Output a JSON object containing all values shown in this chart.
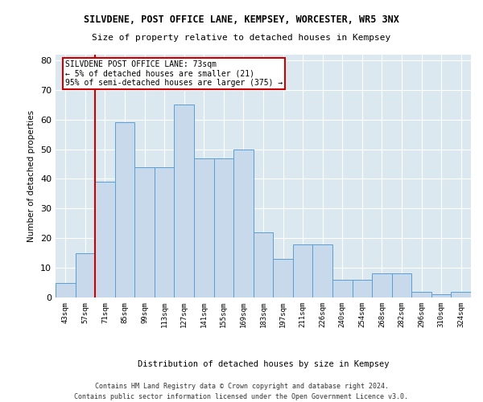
{
  "title1": "SILVDENE, POST OFFICE LANE, KEMPSEY, WORCESTER, WR5 3NX",
  "title2": "Size of property relative to detached houses in Kempsey",
  "xlabel": "Distribution of detached houses by size in Kempsey",
  "ylabel": "Number of detached properties",
  "categories": [
    "43sqm",
    "57sqm",
    "71sqm",
    "85sqm",
    "99sqm",
    "113sqm",
    "127sqm",
    "141sqm",
    "155sqm",
    "169sqm",
    "183sqm",
    "197sqm",
    "211sqm",
    "226sqm",
    "240sqm",
    "254sqm",
    "268sqm",
    "282sqm",
    "296sqm",
    "310sqm",
    "324sqm"
  ],
  "values": [
    5,
    15,
    39,
    59,
    44,
    44,
    65,
    47,
    47,
    50,
    22,
    13,
    18,
    18,
    6,
    6,
    8,
    8,
    2,
    1,
    2
  ],
  "bar_color": "#c8d9eb",
  "bar_edge_color": "#5a9fd4",
  "vline_color": "#cc0000",
  "vline_x_index": 2,
  "annotation_text": "SILVDENE POST OFFICE LANE: 73sqm\n← 5% of detached houses are smaller (21)\n95% of semi-detached houses are larger (375) →",
  "annotation_box_color": "#ffffff",
  "annotation_box_edge": "#cc0000",
  "ylim": [
    0,
    82
  ],
  "yticks": [
    0,
    10,
    20,
    30,
    40,
    50,
    60,
    70,
    80
  ],
  "footer1": "Contains HM Land Registry data © Crown copyright and database right 2024.",
  "footer2": "Contains public sector information licensed under the Open Government Licence v3.0.",
  "bg_color": "#dce8f0",
  "plot_bg_color": "#ffffff",
  "grid_color": "#ffffff"
}
